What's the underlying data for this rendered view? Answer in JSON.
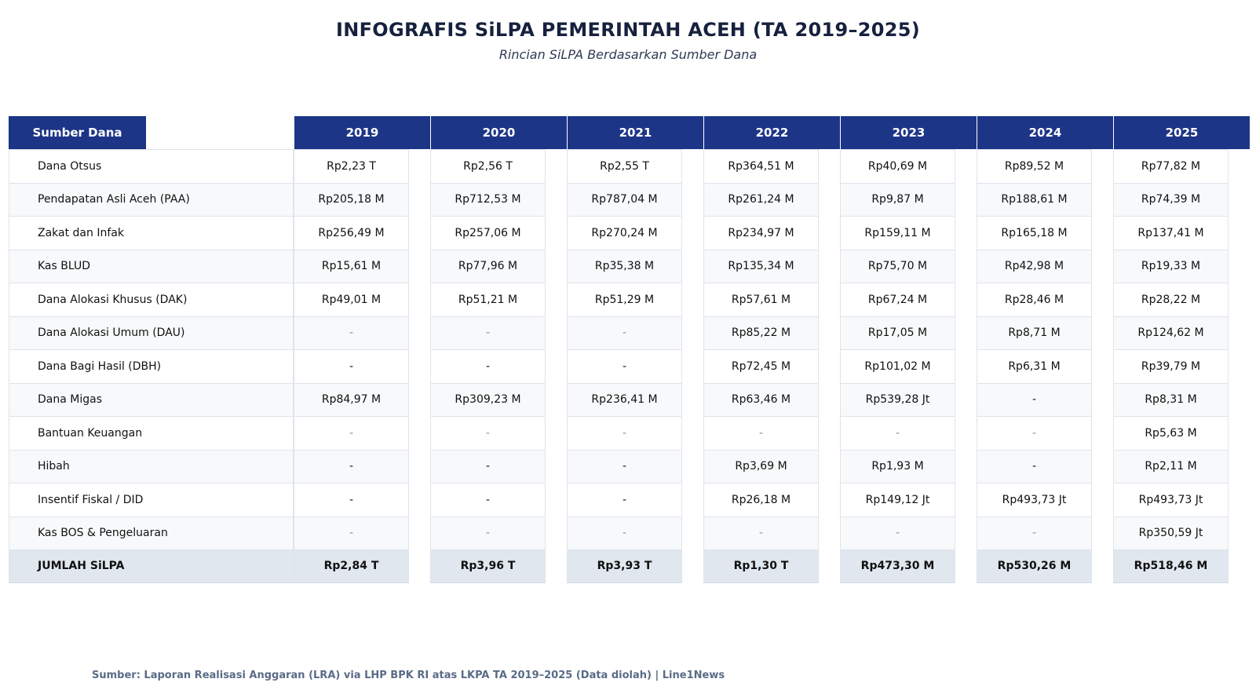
{
  "title": "INFOGRAFIS SiLPA PEMERINTAH ACEH (TA 2019–2025)",
  "subtitle": "Rincian SiLPA Berdasarkan Sumber Dana",
  "source": "Sumber: Laporan Realisasi Anggaran (LRA) via LHP BPK RI atas LKPA TA 2019–2025 (Data diolah) | Line1News",
  "colors": {
    "header_bg": "#1d3587",
    "title": "#16213f",
    "total_row_bg": "#e1e7ef",
    "alt_row_bg": "#f7f9fb"
  },
  "chart_data": {
    "type": "table",
    "title": "INFOGRAFIS SiLPA PEMERINTAH ACEH (TA 2019–2025)",
    "subtitle": "Rincian SiLPA Berdasarkan Sumber Dana",
    "header_label": "Sumber Dana",
    "years": [
      "2019",
      "2020",
      "2021",
      "2022",
      "2023",
      "2024",
      "2025"
    ],
    "rows": [
      {
        "label": "Dana Otsus",
        "values": [
          "Rp2,23 T",
          "Rp2,56 T",
          "Rp2,55 T",
          "Rp364,51 M",
          "Rp40,69 M",
          "Rp89,52 M",
          "Rp77,82 M"
        ]
      },
      {
        "label": "Pendapatan Asli Aceh (PAA)",
        "values": [
          "Rp205,18 M",
          "Rp712,53 M",
          "Rp787,04 M",
          "Rp261,24 M",
          "Rp9,87 M",
          "Rp188,61 M",
          "Rp74,39 M"
        ]
      },
      {
        "label": "Zakat dan Infak",
        "values": [
          "Rp256,49 M",
          "Rp257,06 M",
          "Rp270,24 M",
          "Rp234,97 M",
          "Rp159,11 M",
          "Rp165,18 M",
          "Rp137,41 M"
        ]
      },
      {
        "label": "Kas BLUD",
        "values": [
          "Rp15,61 M",
          "Rp77,96 M",
          "Rp35,38 M",
          "Rp135,34 M",
          "Rp75,70 M",
          "Rp42,98 M",
          "Rp19,33 M"
        ]
      },
      {
        "label": "Dana Alokasi Khusus (DAK)",
        "values": [
          "Rp49,01 M",
          "Rp51,21 M",
          "Rp51,29 M",
          "Rp57,61 M",
          "Rp67,24 M",
          "Rp28,46 M",
          "Rp28,22 M"
        ]
      },
      {
        "label": "Dana Alokasi Umum (DAU)",
        "values": [
          "-",
          "-",
          "-",
          "Rp85,22 M",
          "Rp17,05 M",
          "Rp8,71 M",
          "Rp124,62 M"
        ]
      },
      {
        "label": "Dana Bagi Hasil (DBH)",
        "values": [
          "-",
          "-",
          "-",
          "Rp72,45 M",
          "Rp101,02 M",
          "Rp6,31 M",
          "Rp39,79 M"
        ]
      },
      {
        "label": "Dana Migas",
        "values": [
          "Rp84,97 M",
          "Rp309,23 M",
          "Rp236,41 M",
          "Rp63,46 M",
          "Rp539,28 Jt",
          "-",
          "Rp8,31 M"
        ]
      },
      {
        "label": "Bantuan Keuangan",
        "values": [
          "-",
          "-",
          "-",
          "-",
          "-",
          "-",
          "Rp5,63 M"
        ]
      },
      {
        "label": "Hibah",
        "values": [
          "-",
          "-",
          "-",
          "Rp3,69 M",
          "Rp1,93 M",
          "-",
          "Rp2,11 M"
        ]
      },
      {
        "label": "Insentif Fiskal / DID",
        "values": [
          "-",
          "-",
          "-",
          "Rp26,18 M",
          "Rp149,12 Jt",
          "Rp493,73 Jt",
          "Rp493,73 Jt"
        ]
      },
      {
        "label": "Kas BOS & Pengeluaran",
        "values": [
          "-",
          "-",
          "-",
          "-",
          "-",
          "-",
          "Rp350,59 Jt"
        ]
      }
    ],
    "total": {
      "label": "JUMLAH SiLPA",
      "values": [
        "Rp2,84 T",
        "Rp3,96 T",
        "Rp3,93 T",
        "Rp1,30 T",
        "Rp473,30 M",
        "Rp530,26 M",
        "Rp518,46 M"
      ]
    }
  }
}
